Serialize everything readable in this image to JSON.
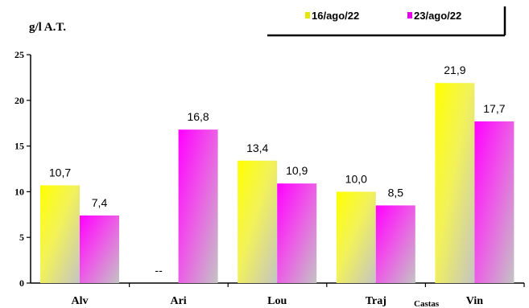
{
  "chart_data": {
    "type": "bar",
    "title": "",
    "ylabel": "g/l A.T.",
    "xlabel": "Castas",
    "ylim": [
      0,
      25
    ],
    "yticks": [
      0,
      5,
      10,
      15,
      20,
      25
    ],
    "grid": false,
    "legend_position": "top-right",
    "categories": [
      "Alv",
      "Ari",
      "Lou",
      "Traj",
      "Vin"
    ],
    "series": [
      {
        "name": "16/ago/22",
        "color": "#ffff00",
        "values": [
          10.7,
          null,
          13.4,
          10.0,
          21.9
        ],
        "labels": [
          "10,7",
          "--",
          "13,4",
          "10,0",
          "21,9"
        ]
      },
      {
        "name": "23/ago/22",
        "color": "#ff00ff",
        "values": [
          7.4,
          16.8,
          10.9,
          8.5,
          17.7
        ],
        "labels": [
          "7,4",
          "16,8",
          "10,9",
          "8,5",
          "17,7"
        ]
      }
    ]
  }
}
